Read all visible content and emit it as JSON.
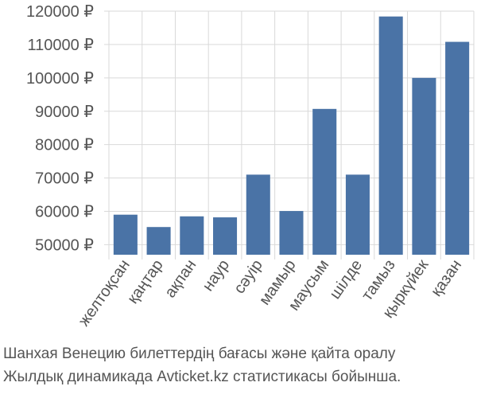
{
  "chart_data": {
    "type": "bar",
    "categories": [
      "желтоқсан",
      "қаңтар",
      "ақпан",
      "наур",
      "сәуір",
      "мамыр",
      "маусым",
      "шілде",
      "тамыз",
      "қыркүйек",
      "қазан"
    ],
    "values": [
      59000,
      55300,
      58500,
      58200,
      71000,
      60100,
      90700,
      71000,
      118400,
      100000,
      110800
    ],
    "ylim": [
      47000,
      120000
    ],
    "yticks": [
      50000,
      60000,
      70000,
      80000,
      90000,
      100000,
      110000,
      120000
    ],
    "ytick_labels": [
      "50000 ₽",
      "60000 ₽",
      "70000 ₽",
      "80000 ₽",
      "90000 ₽",
      "100000 ₽",
      "110000 ₽",
      "120000 ₽"
    ],
    "grid": true,
    "bar_color": "#4a73a6",
    "caption": [
      "Шанхая Венецию билеттердің бағасы және қайта оралу",
      "Жылдық динамикада Avticket.kz статистикасы бойынша."
    ]
  }
}
